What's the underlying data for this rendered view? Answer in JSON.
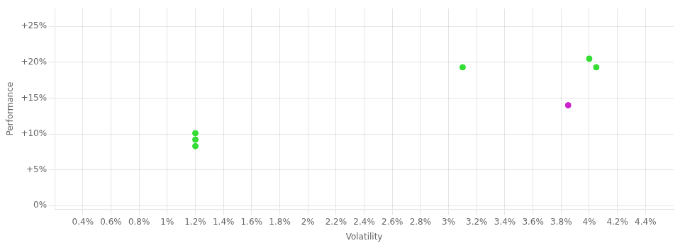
{
  "chart_data": {
    "type": "scatter",
    "xlabel": "Volatility",
    "ylabel": "Performance",
    "x": [
      0.012,
      0.012,
      0.012,
      0.031,
      0.04,
      0.0405,
      0.0385
    ],
    "values": [
      0.101,
      0.092,
      0.083,
      0.193,
      0.205,
      0.193,
      0.14
    ],
    "colors": [
      "#33dd33",
      "#33dd33",
      "#33dd33",
      "#33dd33",
      "#33dd33",
      "#33dd33",
      "#cc22cc"
    ],
    "marker": "circle",
    "xlim": [
      0.002,
      0.046
    ],
    "ylim": [
      -0.005,
      0.275
    ],
    "xticks": [
      {
        "value": 0.004,
        "label": "0.4%"
      },
      {
        "value": 0.006,
        "label": "0.6%"
      },
      {
        "value": 0.008,
        "label": "0.8%"
      },
      {
        "value": 0.01,
        "label": "1%"
      },
      {
        "value": 0.012,
        "label": "1.2%"
      },
      {
        "value": 0.014,
        "label": "1.4%"
      },
      {
        "value": 0.016,
        "label": "1.6%"
      },
      {
        "value": 0.018,
        "label": "1.8%"
      },
      {
        "value": 0.02,
        "label": "2%"
      },
      {
        "value": 0.022,
        "label": "2.2%"
      },
      {
        "value": 0.024,
        "label": "2.4%"
      },
      {
        "value": 0.026,
        "label": "2.6%"
      },
      {
        "value": 0.028,
        "label": "2.8%"
      },
      {
        "value": 0.03,
        "label": "3%"
      },
      {
        "value": 0.032,
        "label": "3.2%"
      },
      {
        "value": 0.034,
        "label": "3.4%"
      },
      {
        "value": 0.036,
        "label": "3.6%"
      },
      {
        "value": 0.038,
        "label": "3.8%"
      },
      {
        "value": 0.04,
        "label": "4%"
      },
      {
        "value": 0.042,
        "label": "4.2%"
      },
      {
        "value": 0.044,
        "label": "4.4%"
      }
    ],
    "yticks": [
      {
        "value": 0.0,
        "label": "0%"
      },
      {
        "value": 0.05,
        "label": "+5%"
      },
      {
        "value": 0.1,
        "label": "+10%"
      },
      {
        "value": 0.15,
        "label": "+15%"
      },
      {
        "value": 0.2,
        "label": "+20%"
      },
      {
        "value": 0.25,
        "label": "+25%"
      }
    ],
    "grid": true
  }
}
